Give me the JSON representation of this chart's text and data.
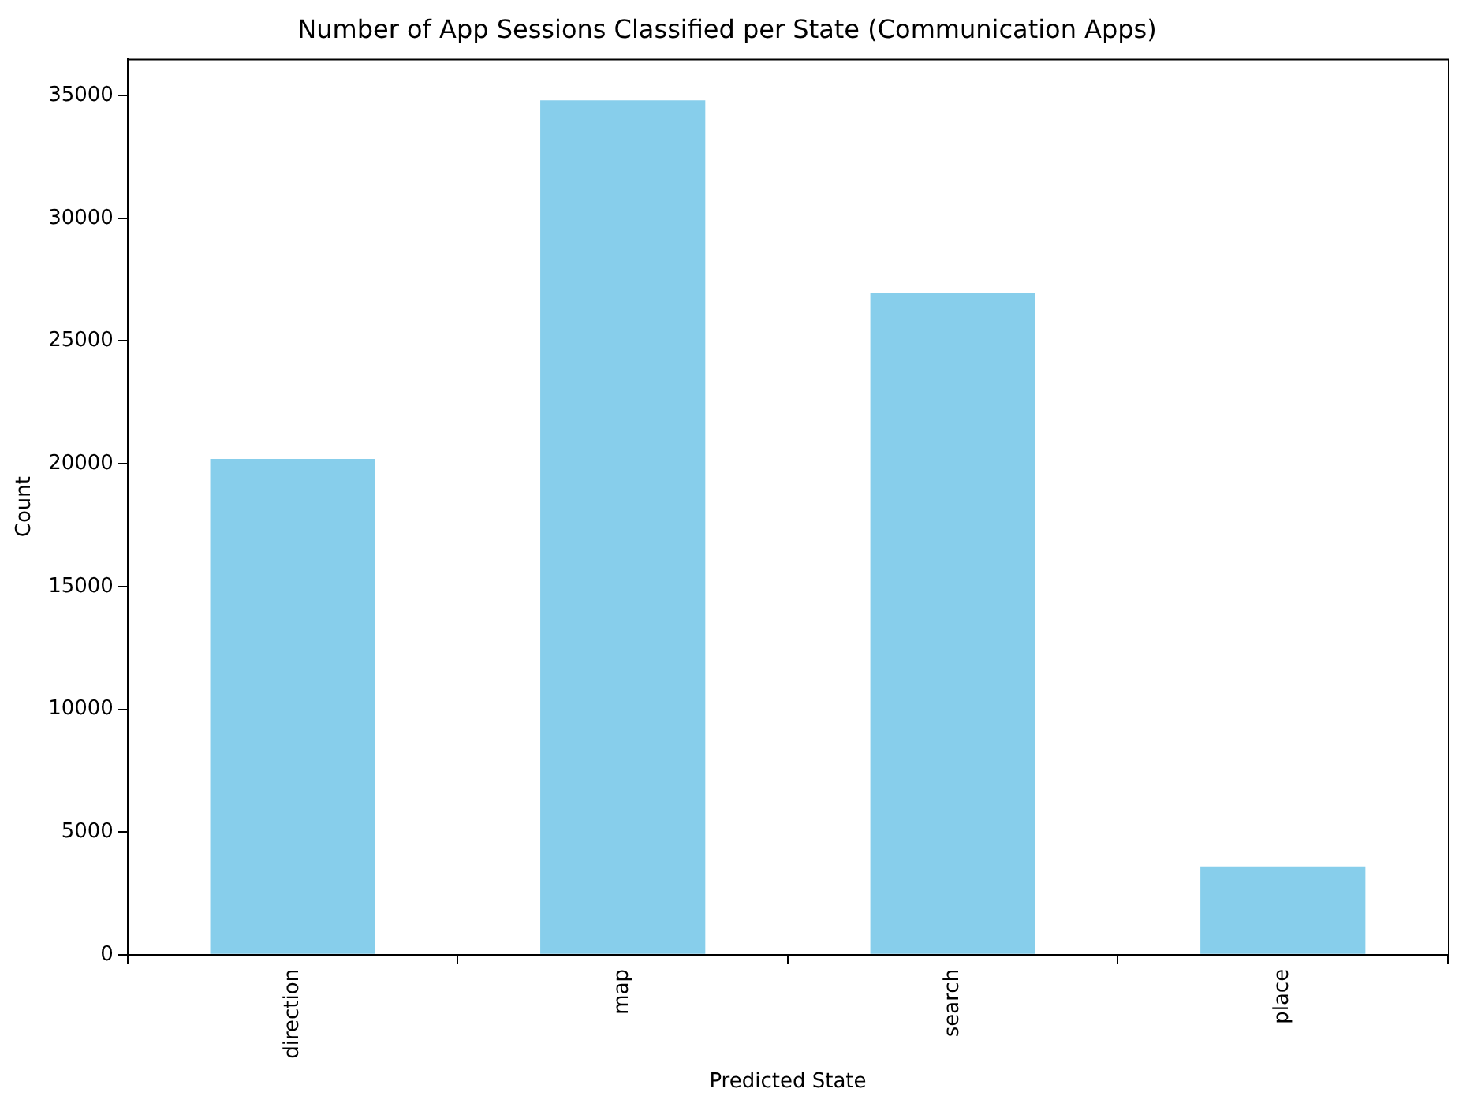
{
  "chart_data": {
    "type": "bar",
    "title": "Number of App Sessions Classified per State (Communication Apps)",
    "xlabel": "Predicted State",
    "ylabel": "Count",
    "categories": [
      "direction",
      "map",
      "search",
      "place"
    ],
    "values": [
      20200,
      34800,
      26950,
      3600
    ],
    "color": "#87ceeb",
    "ylim": [
      0,
      36500
    ],
    "yticks": [
      0,
      5000,
      10000,
      15000,
      20000,
      25000,
      30000,
      35000
    ],
    "grid": false,
    "legend": false
  }
}
